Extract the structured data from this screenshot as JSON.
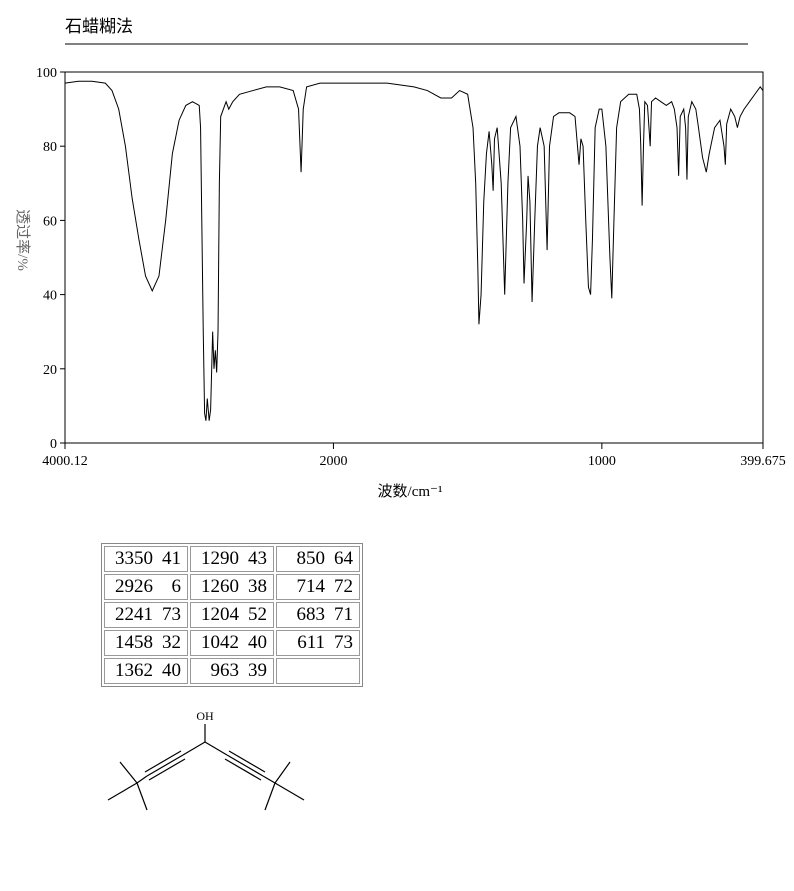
{
  "header": {
    "title": "石蜡糊法"
  },
  "chart_data": {
    "type": "line",
    "x_label": "波数/cm⁻¹",
    "y_label": "透过率/%",
    "x_reversed": true,
    "x_compressed_above": 2000,
    "xlim": [
      4000.12,
      399.675
    ],
    "xticks": [
      4000.12,
      2000,
      1000,
      399.675
    ],
    "ylim": [
      0,
      100
    ],
    "yticks": [
      0,
      20,
      40,
      60,
      80,
      100
    ],
    "grid": false,
    "color": "#000000",
    "x": [
      4000,
      3900,
      3800,
      3700,
      3650,
      3600,
      3550,
      3500,
      3450,
      3400,
      3350,
      3300,
      3250,
      3200,
      3150,
      3100,
      3050,
      3000,
      2990,
      2970,
      2960,
      2950,
      2940,
      2926,
      2915,
      2900,
      2890,
      2880,
      2870,
      2860,
      2850,
      2840,
      2800,
      2780,
      2750,
      2700,
      2600,
      2500,
      2400,
      2300,
      2260,
      2241,
      2225,
      2200,
      2100,
      2000,
      1900,
      1800,
      1700,
      1650,
      1600,
      1560,
      1530,
      1500,
      1480,
      1470,
      1462,
      1458,
      1450,
      1440,
      1430,
      1420,
      1410,
      1405,
      1400,
      1390,
      1375,
      1362,
      1350,
      1340,
      1320,
      1305,
      1295,
      1290,
      1280,
      1275,
      1268,
      1260,
      1250,
      1240,
      1230,
      1215,
      1204,
      1195,
      1180,
      1160,
      1120,
      1100,
      1085,
      1078,
      1070,
      1060,
      1050,
      1042,
      1035,
      1025,
      1010,
      1000,
      985,
      970,
      963,
      955,
      945,
      930,
      900,
      870,
      860,
      855,
      850,
      845,
      840,
      830,
      820,
      815,
      800,
      780,
      760,
      740,
      730,
      720,
      714,
      708,
      695,
      688,
      683,
      678,
      665,
      650,
      640,
      625,
      611,
      600,
      580,
      560,
      545,
      540,
      535,
      520,
      505,
      495,
      485,
      470,
      450,
      430,
      410,
      400
    ],
    "values": [
      97,
      97.5,
      97.5,
      97,
      95,
      90,
      80,
      66,
      55,
      45,
      41,
      45,
      60,
      78,
      87,
      91,
      92,
      91,
      85,
      30,
      8,
      6,
      12,
      6,
      9,
      30,
      20,
      25,
      19,
      30,
      70,
      88,
      92,
      90,
      92,
      94,
      95,
      96,
      96,
      95,
      90,
      73,
      90,
      96,
      97,
      97,
      97,
      97,
      96,
      95,
      93,
      93,
      95,
      94,
      85,
      70,
      47,
      32,
      40,
      65,
      78,
      84,
      75,
      68,
      82,
      85,
      70,
      40,
      70,
      85,
      88,
      80,
      60,
      43,
      60,
      72,
      65,
      38,
      60,
      80,
      85,
      80,
      52,
      80,
      88,
      89,
      89,
      88,
      75,
      82,
      80,
      60,
      42,
      40,
      55,
      85,
      90,
      90,
      80,
      50,
      39,
      60,
      85,
      92,
      94,
      94,
      90,
      80,
      64,
      80,
      92,
      91,
      80,
      92,
      93,
      92,
      91,
      92,
      90,
      85,
      72,
      88,
      90,
      85,
      71,
      88,
      92,
      90,
      85,
      77,
      73,
      78,
      85,
      87,
      80,
      75,
      86,
      90,
      88,
      85,
      88,
      90,
      92,
      94,
      96,
      95
    ]
  },
  "peak_table": {
    "rows": [
      [
        [
          3350,
          41
        ],
        [
          1290,
          43
        ],
        [
          850,
          64
        ]
      ],
      [
        [
          2926,
          6
        ],
        [
          1260,
          38
        ],
        [
          714,
          72
        ]
      ],
      [
        [
          2241,
          73
        ],
        [
          1204,
          52
        ],
        [
          683,
          71
        ]
      ],
      [
        [
          1458,
          32
        ],
        [
          1042,
          40
        ],
        [
          611,
          73
        ]
      ],
      [
        [
          1362,
          40
        ],
        [
          963,
          39
        ]
      ]
    ]
  },
  "structure": {
    "label": "OH"
  }
}
